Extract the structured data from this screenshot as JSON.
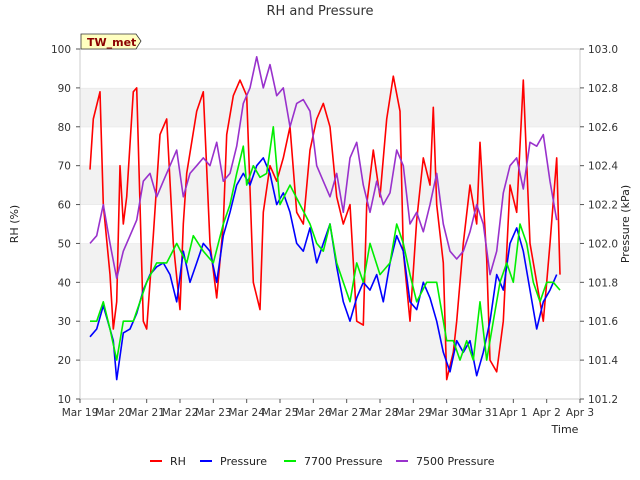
{
  "chart_data": {
    "type": "line",
    "title": "RH and Pressure",
    "xlabel": "Time",
    "ylabel": "RH (%)",
    "y2label": "Pressure (kPa)",
    "station_label": "TW_met",
    "ylim": [
      10,
      100
    ],
    "y2lim": [
      101.2,
      103.0
    ],
    "xlim": [
      0,
      15
    ],
    "x_ticks": [
      0,
      1,
      2,
      3,
      4,
      5,
      6,
      7,
      8,
      9,
      10,
      11,
      12,
      13,
      14,
      15
    ],
    "x_tick_labels": [
      "Mar 19",
      "Mar 20",
      "Mar 21",
      "Mar 22",
      "Mar 23",
      "Mar 24",
      "Mar 25",
      "Mar 26",
      "Mar 27",
      "Mar 28",
      "Mar 29",
      "Mar 30",
      "Mar 31",
      "Apr 1",
      "Apr 2",
      "Apr 3"
    ],
    "y_ticks": [
      10,
      20,
      30,
      40,
      50,
      60,
      70,
      80,
      90,
      100
    ],
    "y2_ticks": [
      "101.2",
      "101.4",
      "101.6",
      "101.8",
      "102.0",
      "102.2",
      "102.4",
      "102.6",
      "102.8",
      "103.0"
    ],
    "grid": "horizontal bands",
    "legend_position": "bottom",
    "colors": {
      "RH": "#ff0000",
      "Pressure": "#0000ff",
      "7700 Pressure": "#00ee00",
      "7500 Pressure": "#9932cc"
    },
    "series": [
      {
        "name": "RH",
        "axis": "left",
        "x": [
          0.3,
          0.4,
          0.6,
          0.7,
          0.9,
          1.0,
          1.1,
          1.2,
          1.3,
          1.4,
          1.6,
          1.7,
          1.8,
          1.9,
          2.0,
          2.2,
          2.4,
          2.5,
          2.6,
          2.8,
          3.0,
          3.1,
          3.2,
          3.5,
          3.7,
          3.9,
          4.1,
          4.3,
          4.4,
          4.6,
          4.8,
          5.0,
          5.2,
          5.4,
          5.5,
          5.7,
          5.9,
          6.1,
          6.3,
          6.5,
          6.7,
          6.9,
          7.1,
          7.3,
          7.5,
          7.7,
          7.9,
          8.1,
          8.3,
          8.5,
          8.6,
          8.8,
          9.0,
          9.2,
          9.4,
          9.6,
          9.7,
          9.9,
          10.1,
          10.3,
          10.5,
          10.6,
          10.7,
          10.9,
          11.0,
          11.2,
          11.3,
          11.5,
          11.7,
          11.9,
          12.0,
          12.2,
          12.3,
          12.5,
          12.7,
          12.9,
          13.1,
          13.3,
          13.5,
          13.7,
          13.9,
          14.0,
          14.1,
          14.3,
          14.4
        ],
        "y": [
          69,
          82,
          89,
          60,
          42,
          28,
          35,
          70,
          55,
          62,
          89,
          90,
          60,
          30,
          28,
          52,
          78,
          80,
          82,
          50,
          33,
          55,
          68,
          84,
          89,
          50,
          36,
          55,
          78,
          88,
          92,
          88,
          40,
          33,
          58,
          70,
          66,
          72,
          80,
          58,
          55,
          74,
          82,
          86,
          80,
          62,
          55,
          60,
          30,
          29,
          60,
          74,
          62,
          82,
          93,
          84,
          48,
          30,
          56,
          72,
          65,
          85,
          60,
          45,
          15,
          22,
          30,
          50,
          65,
          55,
          76,
          46,
          20,
          17,
          30,
          65,
          58,
          92,
          50,
          40,
          30,
          40,
          50,
          72,
          42
        ]
      },
      {
        "name": "Pressure",
        "axis": "left",
        "x": [
          0.3,
          0.5,
          0.7,
          0.9,
          1.0,
          1.1,
          1.3,
          1.5,
          1.7,
          1.9,
          2.1,
          2.3,
          2.5,
          2.7,
          2.9,
          3.1,
          3.3,
          3.5,
          3.7,
          3.9,
          4.1,
          4.3,
          4.5,
          4.7,
          4.9,
          5.1,
          5.3,
          5.5,
          5.7,
          5.9,
          6.1,
          6.3,
          6.5,
          6.7,
          6.9,
          7.1,
          7.3,
          7.5,
          7.7,
          7.9,
          8.1,
          8.3,
          8.5,
          8.7,
          8.9,
          9.1,
          9.3,
          9.5,
          9.7,
          9.9,
          10.1,
          10.3,
          10.5,
          10.7,
          10.9,
          11.1,
          11.3,
          11.5,
          11.7,
          11.9,
          12.1,
          12.3,
          12.5,
          12.7,
          12.9,
          13.1,
          13.3,
          13.5,
          13.7,
          13.9,
          14.1,
          14.3
        ],
        "y": [
          26,
          28,
          34,
          28,
          25,
          15,
          27,
          28,
          32,
          38,
          42,
          44,
          45,
          42,
          35,
          48,
          40,
          45,
          50,
          48,
          40,
          52,
          58,
          65,
          68,
          65,
          70,
          72,
          68,
          60,
          63,
          58,
          50,
          48,
          54,
          45,
          50,
          55,
          44,
          35,
          30,
          36,
          40,
          38,
          42,
          35,
          45,
          52,
          48,
          35,
          33,
          40,
          36,
          30,
          22,
          17,
          25,
          22,
          25,
          16,
          22,
          30,
          42,
          38,
          50,
          54,
          48,
          38,
          28,
          35,
          38,
          42
        ]
      },
      {
        "name": "7700 Pressure",
        "axis": "left",
        "x": [
          0.3,
          0.5,
          0.7,
          0.9,
          1.1,
          1.3,
          1.6,
          1.8,
          2.0,
          2.3,
          2.6,
          2.9,
          3.2,
          3.4,
          3.7,
          4.0,
          4.3,
          4.5,
          4.7,
          4.9,
          5.0,
          5.2,
          5.4,
          5.6,
          5.8,
          6.0,
          6.3,
          6.6,
          6.9,
          7.1,
          7.3,
          7.5,
          7.7,
          7.9,
          8.1,
          8.3,
          8.5,
          8.7,
          9.0,
          9.3,
          9.5,
          9.7,
          9.9,
          10.1,
          10.4,
          10.7,
          11.0,
          11.2,
          11.4,
          11.6,
          11.8,
          12.0,
          12.2,
          12.4,
          12.6,
          12.8,
          13.0,
          13.2,
          13.4,
          13.6,
          13.8,
          14.0,
          14.2,
          14.4
        ],
        "y": [
          30,
          30,
          35,
          28,
          20,
          30,
          30,
          35,
          40,
          45,
          45,
          50,
          45,
          52,
          48,
          45,
          55,
          60,
          68,
          75,
          65,
          70,
          67,
          68,
          80,
          60,
          65,
          60,
          55,
          50,
          48,
          55,
          45,
          40,
          35,
          45,
          40,
          50,
          42,
          45,
          55,
          50,
          42,
          35,
          40,
          40,
          25,
          25,
          20,
          25,
          20,
          35,
          20,
          30,
          40,
          45,
          40,
          55,
          50,
          40,
          35,
          40,
          40,
          38
        ]
      },
      {
        "name": "7500 Pressure",
        "axis": "left",
        "x": [
          0.3,
          0.5,
          0.7,
          0.9,
          1.1,
          1.3,
          1.5,
          1.7,
          1.9,
          2.1,
          2.3,
          2.5,
          2.7,
          2.9,
          3.1,
          3.3,
          3.5,
          3.7,
          3.9,
          4.1,
          4.3,
          4.5,
          4.7,
          4.9,
          5.1,
          5.3,
          5.5,
          5.7,
          5.9,
          6.1,
          6.3,
          6.5,
          6.7,
          6.9,
          7.1,
          7.3,
          7.5,
          7.7,
          7.9,
          8.1,
          8.3,
          8.5,
          8.7,
          8.9,
          9.1,
          9.3,
          9.5,
          9.7,
          9.9,
          10.1,
          10.3,
          10.5,
          10.7,
          10.9,
          11.1,
          11.3,
          11.5,
          11.7,
          11.9,
          12.1,
          12.3,
          12.5,
          12.7,
          12.9,
          13.1,
          13.3,
          13.5,
          13.7,
          13.9,
          14.1,
          14.3
        ],
        "y": [
          50,
          52,
          60,
          50,
          41,
          48,
          52,
          56,
          66,
          68,
          62,
          66,
          70,
          74,
          62,
          68,
          70,
          72,
          70,
          76,
          66,
          68,
          75,
          86,
          90,
          98,
          90,
          96,
          88,
          90,
          80,
          86,
          87,
          84,
          70,
          66,
          62,
          68,
          58,
          72,
          76,
          65,
          58,
          66,
          60,
          63,
          74,
          70,
          55,
          58,
          53,
          60,
          68,
          55,
          48,
          46,
          48,
          53,
          60,
          55,
          42,
          48,
          63,
          70,
          72,
          64,
          76,
          75,
          78,
          66,
          56
        ]
      }
    ],
    "legend": [
      "RH",
      "Pressure",
      "7700 Pressure",
      "7500 Pressure"
    ]
  }
}
